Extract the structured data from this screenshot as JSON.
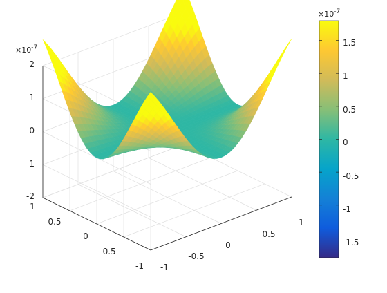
{
  "chart_data": {
    "type": "surface",
    "title": "",
    "xlabel": "",
    "ylabel": "",
    "zlabel": "",
    "grid": true,
    "colormap": "parula",
    "x_range": [
      -1,
      1
    ],
    "y_range": [
      -1,
      1
    ],
    "z_range": [
      -2e-07,
      2e-07
    ],
    "x_ticks": [
      "-1",
      "-0.5",
      "0",
      "0.5",
      "1"
    ],
    "y_ticks": [
      "-1",
      "-0.5",
      "0",
      "0.5",
      "1"
    ],
    "z_ticks": [
      "-2",
      "-1",
      "0",
      "1",
      "2"
    ],
    "z_multiplier": "×10",
    "z_exponent": "-7",
    "peak": {
      "x": 0.7,
      "y": 0.7,
      "z": 1.8e-07
    },
    "trough": {
      "x": -0.7,
      "y": -0.7,
      "z": -1.8e-07
    },
    "colorbar": {
      "range": [
        -1.8e-07,
        1.8e-07
      ],
      "ticks": [
        "-1.5",
        "-1",
        "-0.5",
        "0",
        "0.5",
        "1",
        "1.5"
      ],
      "tick_values": [
        -1.5,
        -1,
        -0.5,
        0,
        0.5,
        1,
        1.5
      ],
      "multiplier": "×10",
      "exponent": "-7",
      "location": "right"
    }
  }
}
